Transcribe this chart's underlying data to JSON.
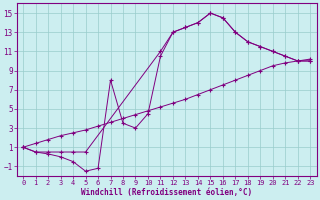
{
  "xlabel": "Windchill (Refroidissement éolien,°C)",
  "bg_color": "#cceef0",
  "line_color": "#800080",
  "grid_color": "#99cccc",
  "xlim": [
    -0.5,
    23.5
  ],
  "ylim": [
    -2,
    16
  ],
  "xticks": [
    0,
    1,
    2,
    3,
    4,
    5,
    6,
    7,
    8,
    9,
    10,
    11,
    12,
    13,
    14,
    15,
    16,
    17,
    18,
    19,
    20,
    21,
    22,
    23
  ],
  "yticks": [
    -1,
    1,
    3,
    5,
    7,
    9,
    11,
    13,
    15
  ],
  "series": [
    {
      "x": [
        0,
        1,
        2,
        3,
        4,
        5,
        11,
        12,
        13,
        14,
        15,
        16,
        17,
        18,
        19,
        20,
        21,
        22,
        23
      ],
      "y": [
        1,
        0.5,
        0.5,
        0.5,
        0.5,
        0.5,
        11,
        13,
        13.5,
        14,
        15,
        14.5,
        13,
        12,
        11.5,
        11,
        10.5,
        10,
        10
      ]
    },
    {
      "x": [
        0,
        1,
        2,
        3,
        4,
        5,
        6,
        7,
        8,
        9,
        10,
        11,
        12,
        13,
        14,
        15,
        16,
        17,
        18,
        19,
        20,
        21,
        22,
        23
      ],
      "y": [
        1,
        0.5,
        0.3,
        0.0,
        -0.5,
        -1.5,
        -1.2,
        8,
        3.5,
        3,
        4.5,
        10.5,
        13,
        13.5,
        14,
        15,
        14.5,
        13,
        12,
        11.5,
        11,
        10.5,
        10,
        10
      ]
    },
    {
      "x": [
        0,
        1,
        2,
        3,
        4,
        5,
        6,
        7,
        8,
        9,
        10,
        11,
        12,
        13,
        14,
        15,
        16,
        17,
        18,
        19,
        20,
        21,
        22,
        23
      ],
      "y": [
        1,
        1.4,
        1.8,
        2.2,
        2.5,
        2.8,
        3.2,
        3.6,
        4.0,
        4.4,
        4.8,
        5.2,
        5.6,
        6.0,
        6.5,
        7.0,
        7.5,
        8.0,
        8.5,
        9.0,
        9.5,
        9.8,
        10.0,
        10.2
      ]
    }
  ]
}
